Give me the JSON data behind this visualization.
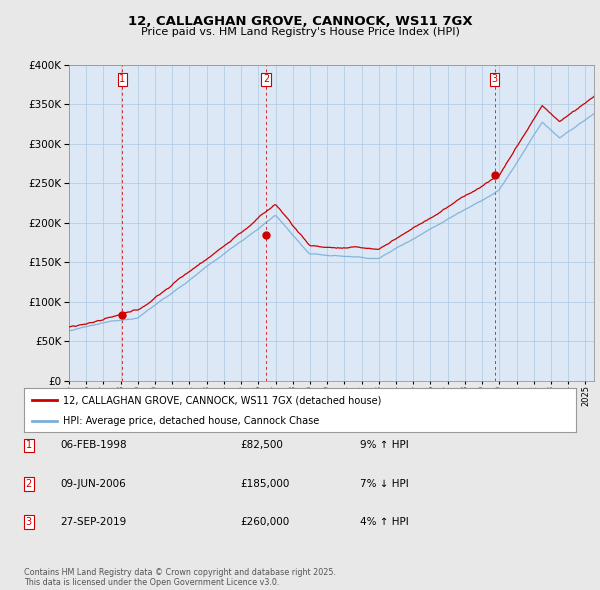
{
  "title1": "12, CALLAGHAN GROVE, CANNOCK, WS11 7GX",
  "title2": "Price paid vs. HM Land Registry's House Price Index (HPI)",
  "background_color": "#e8e8e8",
  "plot_bg_color": "#dce8f5",
  "red_color": "#cc0000",
  "blue_color": "#7ab0d8",
  "ymin": 0,
  "ymax": 400000,
  "xmin": 1995.0,
  "xmax": 2025.5,
  "sale_dates": [
    1998.09,
    2006.44,
    2019.74
  ],
  "sale_prices": [
    82500,
    185000,
    260000
  ],
  "sale_labels": [
    "1",
    "2",
    "3"
  ],
  "legend_label_red": "12, CALLAGHAN GROVE, CANNOCK, WS11 7GX (detached house)",
  "legend_label_blue": "HPI: Average price, detached house, Cannock Chase",
  "table_rows": [
    {
      "num": "1",
      "date": "06-FEB-1998",
      "price": "£82,500",
      "pct": "9% ↑ HPI"
    },
    {
      "num": "2",
      "date": "09-JUN-2006",
      "price": "£185,000",
      "pct": "7% ↓ HPI"
    },
    {
      "num": "3",
      "date": "27-SEP-2019",
      "price": "£260,000",
      "pct": "4% ↑ HPI"
    }
  ],
  "footnote": "Contains HM Land Registry data © Crown copyright and database right 2025.\nThis data is licensed under the Open Government Licence v3.0."
}
